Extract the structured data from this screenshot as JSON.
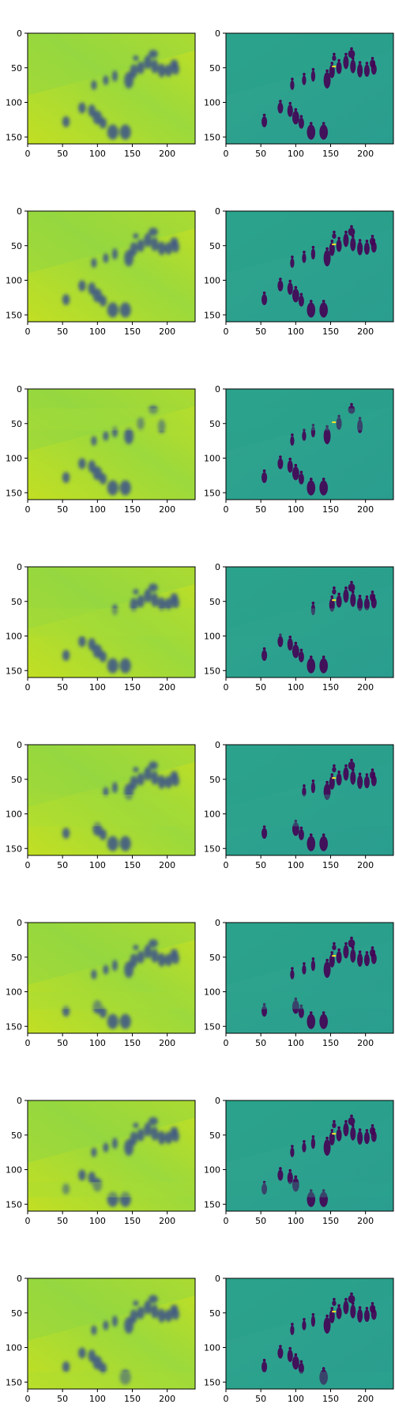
{
  "figure": {
    "rows": 8,
    "cols": 2
  },
  "chart_data": {
    "type": "heatmap",
    "description_of_content": "",
    "colormap": "viridis",
    "colors": {
      "left_panel_base": "#9bd93c",
      "left_panel_light": "#c2df23",
      "right_panel_base": "#2a9d8f",
      "right_panel_dark": "#3b528b",
      "figure_dark": "#440154",
      "highlight": "#fde725",
      "axis": "#000000"
    },
    "image_shape": [
      160,
      240
    ],
    "xlim": [
      0,
      240
    ],
    "ylim": [
      160,
      0
    ],
    "xticks": [
      "0",
      "50",
      "100",
      "150",
      "200"
    ],
    "xtick_values": [
      0,
      50,
      100,
      150,
      200
    ],
    "yticks": [
      "0",
      "50",
      "100",
      "150"
    ],
    "ytick_values": [
      0,
      50,
      100,
      150
    ],
    "panel_types": [
      "smooth",
      "textured"
    ],
    "figures_base": [
      {
        "x": 55,
        "y": 128,
        "rx": 4,
        "ry": 8
      },
      {
        "x": 78,
        "y": 108,
        "rx": 4,
        "ry": 8
      },
      {
        "x": 92,
        "y": 112,
        "rx": 4,
        "ry": 9
      },
      {
        "x": 100,
        "y": 122,
        "rx": 5,
        "ry": 10
      },
      {
        "x": 108,
        "y": 130,
        "rx": 4,
        "ry": 8
      },
      {
        "x": 122,
        "y": 143,
        "rx": 6,
        "ry": 11
      },
      {
        "x": 140,
        "y": 143,
        "rx": 6,
        "ry": 11
      },
      {
        "x": 95,
        "y": 75,
        "rx": 3,
        "ry": 7
      },
      {
        "x": 112,
        "y": 68,
        "rx": 3,
        "ry": 7
      },
      {
        "x": 125,
        "y": 62,
        "rx": 3,
        "ry": 8
      },
      {
        "x": 145,
        "y": 68,
        "rx": 5,
        "ry": 12
      },
      {
        "x": 152,
        "y": 55,
        "rx": 4,
        "ry": 10
      },
      {
        "x": 162,
        "y": 50,
        "rx": 4,
        "ry": 9
      },
      {
        "x": 172,
        "y": 42,
        "rx": 4,
        "ry": 10
      },
      {
        "x": 182,
        "y": 48,
        "rx": 4,
        "ry": 10
      },
      {
        "x": 192,
        "y": 54,
        "rx": 4,
        "ry": 10
      },
      {
        "x": 202,
        "y": 54,
        "rx": 4,
        "ry": 9
      },
      {
        "x": 212,
        "y": 52,
        "rx": 4,
        "ry": 8
      },
      {
        "x": 180,
        "y": 30,
        "rx": 5,
        "ry": 6
      },
      {
        "x": 155,
        "y": 36,
        "rx": 3,
        "ry": 4
      },
      {
        "x": 210,
        "y": 44,
        "rx": 4,
        "ry": 6
      }
    ],
    "panels": [
      {
        "row": 0,
        "remove_band": null,
        "highlight": true
      },
      {
        "row": 1,
        "remove_band": null,
        "highlight": true
      },
      {
        "row": 2,
        "remove_band": [
          28,
          60
        ],
        "highlight": true
      },
      {
        "row": 3,
        "remove_band": [
          60,
          100
        ],
        "highlight": true
      },
      {
        "row": 4,
        "remove_band": [
          72,
          118
        ],
        "highlight": true
      },
      {
        "row": 5,
        "remove_band": [
          100,
          125
        ],
        "highlight": true
      },
      {
        "row": 6,
        "remove_band": [
          118,
          140
        ],
        "highlight": true
      },
      {
        "row": 7,
        "remove_band": [
          135,
          160
        ],
        "highlight": true
      }
    ]
  }
}
